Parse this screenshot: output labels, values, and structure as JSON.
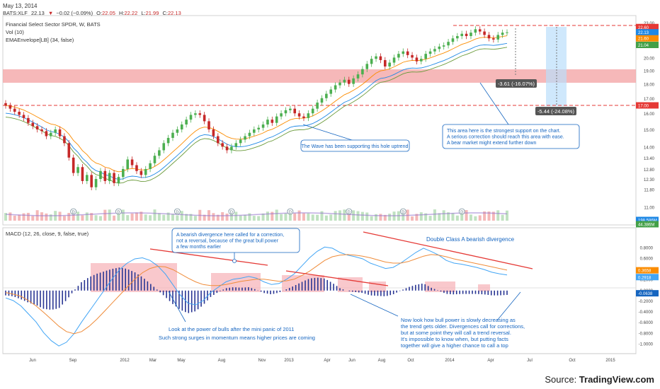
{
  "header": {
    "date": "May 13, 2014",
    "symbol": "BATS:XLF",
    "last": "22.13",
    "arrow": "▼",
    "change": "−0.02 (−0.09%)",
    "open_label": "O:",
    "open": "22.05",
    "high_label": "H:",
    "high": "22.22",
    "low_label": "L:",
    "low": "21.99",
    "close_label": "C:",
    "close": "22.13"
  },
  "legend": {
    "title": "Financial Select Sector SPDR, W, BATS",
    "vol": "Vol (10)",
    "ema": "EMAEnvelope[LB] (34, false)"
  },
  "macd_label": "MACD (12, 26, close, 9, false, true)",
  "annotations": {
    "measure1": "-3.61 (-16.07%)",
    "measure2": "-5.44 (-24.08%)",
    "support_note": "This area here is the strongest support on the chart.\nA serious correction should reach this area with ease.\nA bear market might extend further down",
    "wave_note": "The Wave has been supporting this hole uptrend",
    "divergence_note": "A bearish divergence here called for a correction,\nnot a reversal, because of the great bull power\na few months earlier",
    "double_class": "Double Class A bearish divergence",
    "bulls_note_1": "Look at the power of bulls after the mini panic of 2011",
    "bulls_note_2": "Such strong surges in momentum means higher prices are coming",
    "bull_power_note": "Now look how bull power is slowly decreasing as\nthe trend gets older. Divergences call for corrections,\nbut at some point they will call a trend reversal.\nIt's impossible to know when, but putting facts\ntogether will give a higher chance to call a top"
  },
  "source": {
    "prefix": "Source: ",
    "brand": "TradingView.com"
  },
  "colors": {
    "up": "#4caf50",
    "down": "#c62828",
    "ema_outer": "#1e88e5",
    "ema_mid": "#fb8c00",
    "ema_inner": "#6a9a3a",
    "support_zone": "#f4a6a8",
    "dashed_line": "#e53935",
    "macd_line": "#42a5f5",
    "signal_line": "#ef8c3a",
    "histogram": "#283593",
    "histogram_box": "#f7b6bb",
    "divergence_line": "#e53935",
    "note_text": "#1565c0",
    "projection": "#bbdefb"
  },
  "chart_data": [
    {
      "type": "candlestick",
      "title": "Financial Select Sector SPDR, W, BATS",
      "y_ticks": [
        "23.00",
        "22.60",
        "22.13",
        "21.60",
        "21.04",
        "20.00",
        "19.00",
        "18.00",
        "17.00",
        "16.00",
        "15.00",
        "14.00",
        "13.40",
        "12.80",
        "12.30",
        "11.80",
        "11.00"
      ],
      "ylim": [
        10.8,
        23.2
      ],
      "scale": "log",
      "x_ticks": [
        "Jun",
        "Sep",
        "2012",
        "Mar",
        "May",
        "Aug",
        "Nov",
        "2013",
        "Apr",
        "Jun",
        "Aug",
        "Oct",
        "2014",
        "Apr",
        "Jul",
        "Oct",
        "2015"
      ],
      "price_labels": {
        "high": "22.60",
        "last": "22.13",
        "ema_mid": "21.60",
        "ema_low": "21.04",
        "line2": "17.00"
      },
      "volume_labels": [
        "198.586M",
        "44.386M"
      ],
      "support_zone": [
        18.55,
        19.35
      ],
      "resistance_line": 22.6,
      "target_line": 17.0,
      "closes": [
        16.5,
        16.3,
        16.1,
        15.9,
        15.7,
        15.4,
        15.2,
        15.0,
        14.9,
        14.6,
        14.8,
        15.0,
        14.6,
        14.2,
        13.4,
        12.6,
        12.9,
        12.2,
        12.5,
        11.9,
        12.3,
        12.7,
        12.2,
        12.6,
        12.1,
        12.4,
        12.8,
        13.3,
        13.0,
        12.7,
        12.5,
        12.8,
        13.1,
        13.5,
        13.8,
        14.2,
        14.5,
        14.8,
        15.0,
        15.3,
        15.6,
        15.9,
        16.0,
        15.9,
        15.5,
        15.0,
        14.6,
        14.2,
        14.0,
        13.8,
        14.0,
        14.2,
        14.4,
        14.6,
        14.8,
        15.0,
        15.1,
        15.3,
        15.6,
        15.4,
        15.8,
        16.0,
        16.2,
        16.3,
        16.0,
        15.8,
        15.7,
        16.0,
        16.3,
        16.7,
        17.0,
        17.3,
        17.6,
        17.9,
        18.1,
        18.3,
        18.0,
        18.4,
        18.7,
        19.1,
        19.5,
        19.9,
        20.1,
        19.8,
        19.3,
        19.6,
        20.0,
        20.3,
        20.5,
        20.2,
        20.0,
        19.7,
        19.9,
        20.3,
        20.5,
        20.7,
        20.9,
        21.0,
        21.3,
        21.6,
        21.8,
        22.0,
        21.8,
        22.1,
        22.4,
        22.2,
        21.9,
        21.6,
        21.5,
        21.9,
        22.1,
        22.13
      ],
      "ema_envelope": {
        "mid": "EMA 34",
        "upper": "EMA 34 +",
        "lower": "EMA 34 -"
      }
    },
    {
      "type": "line",
      "title": "MACD (12, 26, close, 9, false, true)",
      "y_ticks": [
        "0.8000",
        "0.6000",
        "0.4000",
        "0.2000",
        "0.0000",
        "-0.2000",
        "-0.4000",
        "-0.6000",
        "-0.8000",
        "-1.0000"
      ],
      "ylim": [
        -1.1,
        0.95
      ],
      "value_labels": [
        "0.3658",
        "0.2918",
        "-0.0638"
      ],
      "series": [
        {
          "values": [
            -0.15,
            -0.2,
            -0.3,
            -0.45,
            -0.6,
            -0.8,
            -0.95,
            -1.05,
            -0.98,
            -0.82,
            -0.6,
            -0.4,
            -0.2,
            0.0,
            0.2,
            0.38,
            0.5,
            0.58,
            0.6,
            0.55,
            0.45,
            0.3,
            0.1,
            -0.1,
            -0.25,
            -0.28,
            -0.2,
            -0.05,
            0.05,
            0.15,
            0.2,
            0.22,
            0.25,
            0.22,
            0.15,
            0.1,
            0.12,
            0.2,
            0.3,
            0.45,
            0.6,
            0.72,
            0.8,
            0.78,
            0.7,
            0.65,
            0.62,
            0.58,
            0.5,
            0.45,
            0.4,
            0.42,
            0.5,
            0.6,
            0.7,
            0.78,
            0.72,
            0.65,
            0.55,
            0.5,
            0.48,
            0.45,
            0.42,
            0.38,
            0.33,
            0.3,
            0.28
          ]
        },
        {
          "values": [
            -0.05,
            -0.08,
            -0.12,
            -0.2,
            -0.3,
            -0.42,
            -0.55,
            -0.68,
            -0.78,
            -0.82,
            -0.78,
            -0.68,
            -0.55,
            -0.4,
            -0.25,
            -0.1,
            0.05,
            0.2,
            0.32,
            0.4,
            0.44,
            0.43,
            0.38,
            0.3,
            0.22,
            0.15,
            0.1,
            0.08,
            0.08,
            0.1,
            0.13,
            0.16,
            0.18,
            0.2,
            0.2,
            0.18,
            0.16,
            0.17,
            0.2,
            0.27,
            0.35,
            0.45,
            0.55,
            0.62,
            0.65,
            0.66,
            0.65,
            0.63,
            0.6,
            0.56,
            0.52,
            0.5,
            0.5,
            0.53,
            0.58,
            0.63,
            0.66,
            0.65,
            0.62,
            0.58,
            0.55,
            0.52,
            0.49,
            0.46,
            0.43,
            0.4,
            0.37
          ]
        }
      ]
    }
  ]
}
